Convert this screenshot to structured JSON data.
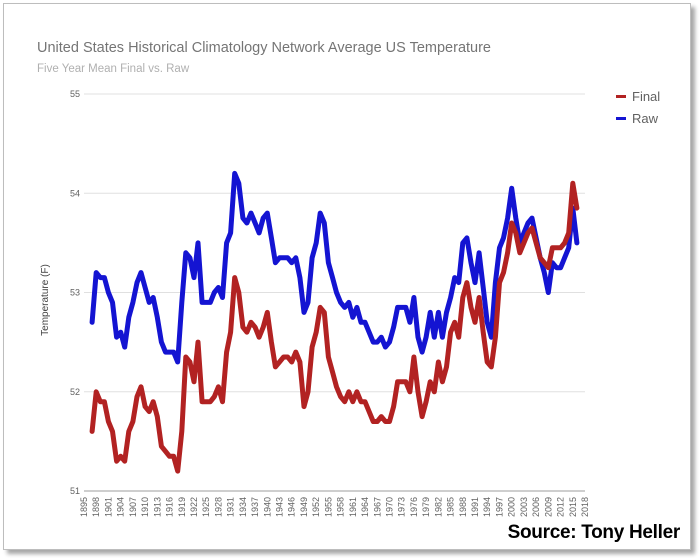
{
  "chart_data": {
    "type": "line",
    "title": "United States Historical Climatology Network Average US Temperature",
    "subtitle": "Five Year Mean  Final vs. Raw",
    "xlabel": "",
    "ylabel": "Temperature (F)",
    "ylim": [
      51,
      55
    ],
    "yticks": [
      51,
      52,
      53,
      54,
      55
    ],
    "xlim": [
      1895,
      2018
    ],
    "xticks": [
      1895,
      1898,
      1901,
      1904,
      1907,
      1910,
      1913,
      1916,
      1919,
      1922,
      1925,
      1928,
      1931,
      1934,
      1937,
      1940,
      1943,
      1946,
      1949,
      1952,
      1955,
      1958,
      1961,
      1964,
      1967,
      1970,
      1973,
      1976,
      1979,
      1982,
      1985,
      1988,
      1991,
      1994,
      1997,
      2000,
      2003,
      2006,
      2009,
      2012,
      2015,
      2018
    ],
    "grid": true,
    "legend_position": "top-right",
    "x": [
      1897,
      1898,
      1899,
      1900,
      1901,
      1902,
      1903,
      1904,
      1905,
      1906,
      1907,
      1908,
      1909,
      1910,
      1911,
      1912,
      1913,
      1914,
      1915,
      1916,
      1917,
      1918,
      1919,
      1920,
      1921,
      1922,
      1923,
      1924,
      1925,
      1926,
      1927,
      1928,
      1929,
      1930,
      1931,
      1932,
      1933,
      1934,
      1935,
      1936,
      1937,
      1938,
      1939,
      1940,
      1941,
      1942,
      1943,
      1944,
      1945,
      1946,
      1947,
      1948,
      1949,
      1950,
      1951,
      1952,
      1953,
      1954,
      1955,
      1956,
      1957,
      1958,
      1959,
      1960,
      1961,
      1962,
      1963,
      1964,
      1965,
      1966,
      1967,
      1968,
      1969,
      1970,
      1971,
      1972,
      1973,
      1974,
      1975,
      1976,
      1977,
      1978,
      1979,
      1980,
      1981,
      1982,
      1983,
      1984,
      1985,
      1986,
      1987,
      1988,
      1989,
      1990,
      1991,
      1992,
      1993,
      1994,
      1995,
      1996,
      1997,
      1998,
      1999,
      2000,
      2001,
      2002,
      2003,
      2004,
      2005,
      2006,
      2007,
      2008,
      2009,
      2010,
      2011,
      2012,
      2013,
      2014,
      2015,
      2016
    ],
    "series": [
      {
        "name": "Final",
        "color": "#b22222",
        "values": [
          51.6,
          52.0,
          51.9,
          51.9,
          51.7,
          51.6,
          51.3,
          51.35,
          51.3,
          51.6,
          51.7,
          51.95,
          52.05,
          51.85,
          51.8,
          51.9,
          51.75,
          51.45,
          51.4,
          51.35,
          51.35,
          51.2,
          51.6,
          52.35,
          52.3,
          52.1,
          52.5,
          51.9,
          51.9,
          51.9,
          51.95,
          52.05,
          51.9,
          52.4,
          52.6,
          53.15,
          53.0,
          52.65,
          52.6,
          52.7,
          52.65,
          52.55,
          52.65,
          52.8,
          52.5,
          52.25,
          52.3,
          52.35,
          52.35,
          52.3,
          52.4,
          52.3,
          51.85,
          52.0,
          52.45,
          52.6,
          52.85,
          52.8,
          52.35,
          52.2,
          52.05,
          51.95,
          51.9,
          52.0,
          51.9,
          52.0,
          51.9,
          51.9,
          51.8,
          51.7,
          51.7,
          51.75,
          51.7,
          51.7,
          51.85,
          52.1,
          52.1,
          52.1,
          52.0,
          52.35,
          52.0,
          51.75,
          51.9,
          52.1,
          52.0,
          52.3,
          52.1,
          52.25,
          52.6,
          52.7,
          52.55,
          52.95,
          53.1,
          52.85,
          52.7,
          52.95,
          52.6,
          52.3,
          52.25,
          52.55,
          53.1,
          53.2,
          53.4,
          53.7,
          53.6,
          53.4,
          53.5,
          53.6,
          53.65,
          53.5,
          53.35,
          53.3,
          53.25,
          53.45,
          53.45,
          53.45,
          53.5,
          53.6,
          54.1,
          53.85
        ]
      },
      {
        "name": "Raw",
        "color": "#1414d2",
        "values": [
          52.7,
          53.2,
          53.15,
          53.15,
          53.0,
          52.9,
          52.55,
          52.6,
          52.45,
          52.75,
          52.9,
          53.1,
          53.2,
          53.05,
          52.9,
          52.95,
          52.75,
          52.5,
          52.4,
          52.4,
          52.4,
          52.3,
          52.9,
          53.4,
          53.35,
          53.15,
          53.5,
          52.9,
          52.9,
          52.9,
          53.0,
          53.05,
          52.95,
          53.5,
          53.6,
          54.2,
          54.1,
          53.75,
          53.7,
          53.8,
          53.7,
          53.6,
          53.75,
          53.8,
          53.55,
          53.3,
          53.35,
          53.35,
          53.35,
          53.3,
          53.35,
          53.15,
          52.8,
          52.9,
          53.35,
          53.5,
          53.8,
          53.7,
          53.3,
          53.15,
          53.0,
          52.9,
          52.85,
          52.9,
          52.75,
          52.85,
          52.7,
          52.7,
          52.6,
          52.5,
          52.5,
          52.55,
          52.45,
          52.5,
          52.65,
          52.85,
          52.85,
          52.85,
          52.7,
          52.95,
          52.55,
          52.4,
          52.55,
          52.8,
          52.55,
          52.8,
          52.55,
          52.8,
          52.95,
          53.15,
          53.1,
          53.5,
          53.55,
          53.3,
          53.1,
          53.4,
          53.05,
          52.7,
          52.55,
          53.1,
          53.45,
          53.55,
          53.75,
          54.05,
          53.75,
          53.5,
          53.6,
          53.7,
          53.75,
          53.55,
          53.35,
          53.2,
          53.0,
          53.3,
          53.25,
          53.25,
          53.35,
          53.45,
          53.85,
          53.5
        ]
      }
    ]
  },
  "source_label": "Source: Tony Heller"
}
